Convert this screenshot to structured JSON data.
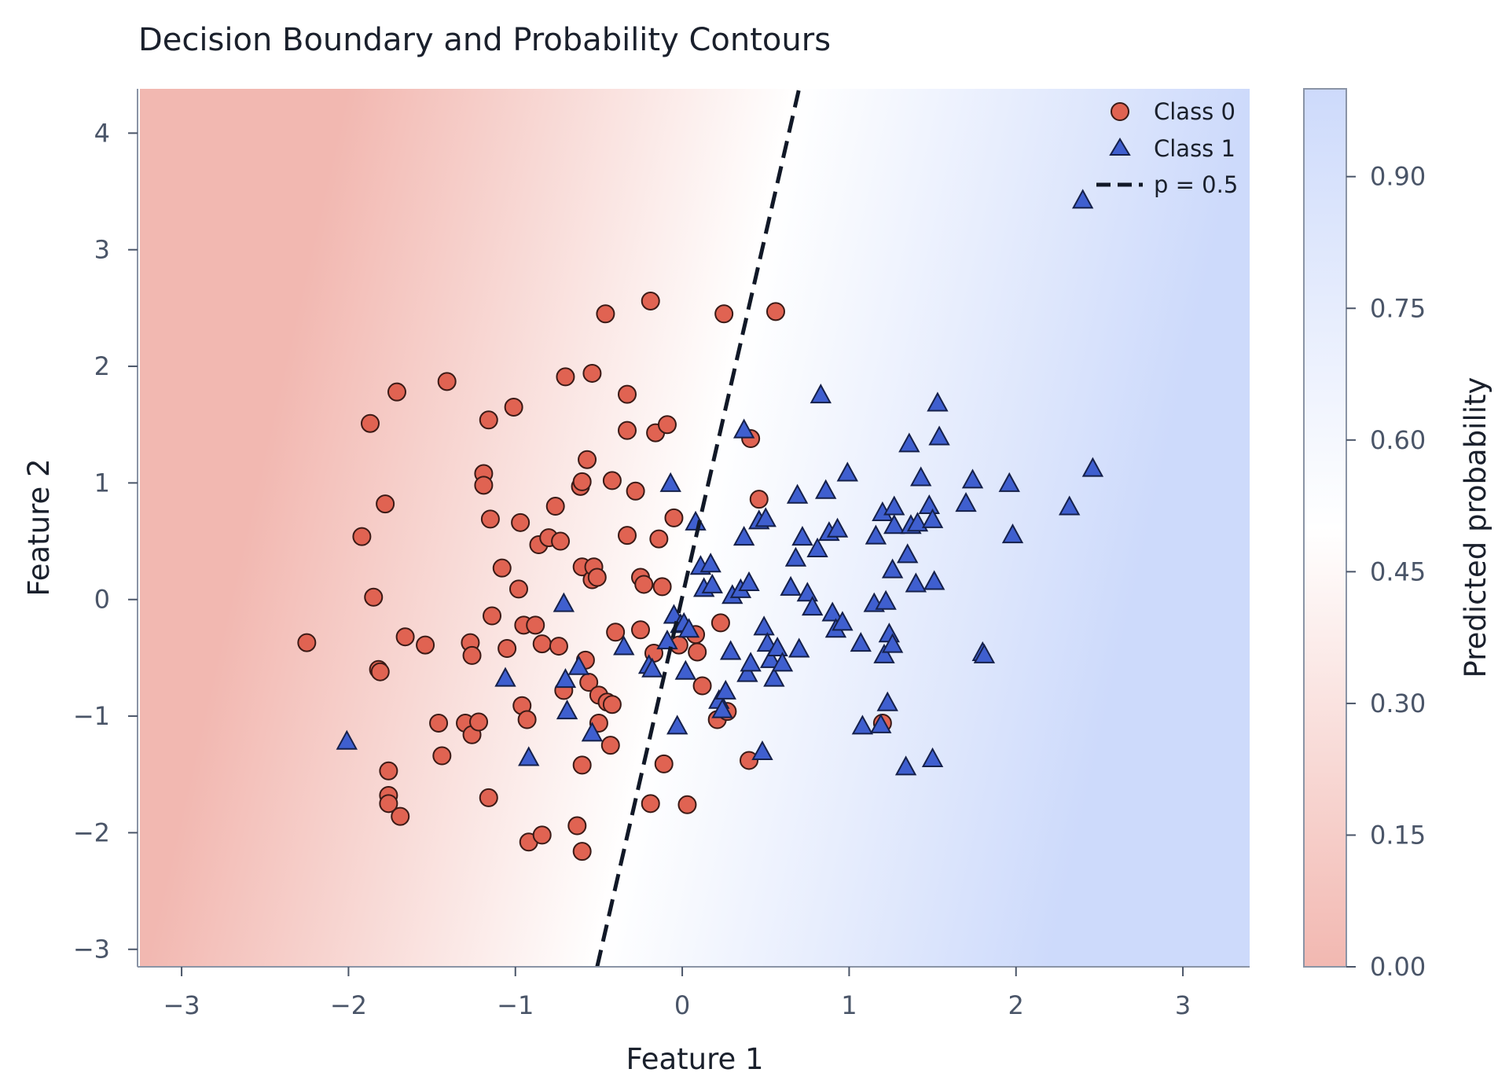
{
  "chart_data": {
    "type": "scatter",
    "title": "Decision Boundary and Probability Contours",
    "xlabel": "Feature 1",
    "ylabel": "Feature 2",
    "xlim": [
      -3.25,
      3.4
    ],
    "ylim": [
      -3.15,
      4.38
    ],
    "xticks": [
      -3,
      -2,
      -1,
      0,
      1,
      2,
      3
    ],
    "xtick_labels": [
      "−3",
      "−2",
      "−1",
      "0",
      "1",
      "2",
      "3"
    ],
    "yticks": [
      -3,
      -2,
      -1,
      0,
      1,
      2,
      3,
      4
    ],
    "ytick_labels": [
      "−3",
      "−2",
      "−1",
      "0",
      "1",
      "2",
      "3",
      "4"
    ],
    "grid": false,
    "legend_position": "top-right",
    "background": "filled probability contours (red = low, blue = high)",
    "decision_boundary": {
      "label": "p = 0.5",
      "style": "dashed",
      "color": "#111827",
      "points": [
        [
          -0.51,
          -3.15
        ],
        [
          0.7,
          4.38
        ]
      ]
    },
    "colorbar": {
      "label": "Predicted probability",
      "range": [
        0.0,
        1.0
      ],
      "ticks": [
        0.0,
        0.15,
        0.3,
        0.45,
        0.6,
        0.75,
        0.9
      ],
      "tick_labels": [
        "0.00",
        "0.15",
        "0.30",
        "0.45",
        "0.60",
        "0.75",
        "0.90"
      ],
      "low_color": "#f2b8b1",
      "mid_color": "#ffffff",
      "high_color": "#cddafb"
    },
    "series": [
      {
        "name": "Class 0",
        "marker": "circle",
        "color": "#e06352",
        "points": [
          [
            -2.25,
            -0.37
          ],
          [
            -1.92,
            0.54
          ],
          [
            -1.87,
            1.51
          ],
          [
            -1.85,
            0.02
          ],
          [
            -1.82,
            -0.6
          ],
          [
            -1.81,
            -0.62
          ],
          [
            -1.78,
            0.82
          ],
          [
            -1.76,
            -1.47
          ],
          [
            -1.76,
            -1.68
          ],
          [
            -1.76,
            -1.75
          ],
          [
            -1.71,
            1.78
          ],
          [
            -1.69,
            -1.86
          ],
          [
            -1.66,
            -0.32
          ],
          [
            -1.54,
            -0.39
          ],
          [
            -1.46,
            -1.06
          ],
          [
            -1.44,
            -1.34
          ],
          [
            -1.41,
            1.87
          ],
          [
            -1.3,
            -1.06
          ],
          [
            -1.27,
            -0.37
          ],
          [
            -1.26,
            -1.16
          ],
          [
            -1.26,
            -0.48
          ],
          [
            -1.22,
            -1.05
          ],
          [
            -1.19,
            1.08
          ],
          [
            -1.19,
            0.98
          ],
          [
            -1.16,
            -1.7
          ],
          [
            -1.16,
            1.54
          ],
          [
            -1.15,
            0.69
          ],
          [
            -1.14,
            -0.14
          ],
          [
            -1.08,
            0.27
          ],
          [
            -1.05,
            -0.42
          ],
          [
            -1.01,
            1.65
          ],
          [
            -0.98,
            0.09
          ],
          [
            -0.97,
            0.66
          ],
          [
            -0.96,
            -0.91
          ],
          [
            -0.95,
            -0.22
          ],
          [
            -0.93,
            -1.03
          ],
          [
            -0.92,
            -2.08
          ],
          [
            -0.88,
            -0.22
          ],
          [
            -0.86,
            0.47
          ],
          [
            -0.84,
            -2.02
          ],
          [
            -0.84,
            -0.38
          ],
          [
            -0.8,
            0.53
          ],
          [
            -0.76,
            0.8
          ],
          [
            -0.74,
            -0.4
          ],
          [
            -0.73,
            0.5
          ],
          [
            -0.71,
            -0.78
          ],
          [
            -0.7,
            1.91
          ],
          [
            -0.63,
            -1.94
          ],
          [
            -0.61,
            0.97
          ],
          [
            -0.6,
            -2.16
          ],
          [
            -0.6,
            -1.42
          ],
          [
            -0.6,
            1.01
          ],
          [
            -0.6,
            0.28
          ],
          [
            -0.58,
            -0.52
          ],
          [
            -0.57,
            1.2
          ],
          [
            -0.56,
            -0.71
          ],
          [
            -0.54,
            1.94
          ],
          [
            -0.54,
            0.17
          ],
          [
            -0.53,
            0.28
          ],
          [
            -0.51,
            0.19
          ],
          [
            -0.5,
            -1.06
          ],
          [
            -0.5,
            -0.82
          ],
          [
            -0.46,
            2.45
          ],
          [
            -0.45,
            -0.88
          ],
          [
            -0.43,
            -1.25
          ],
          [
            -0.42,
            1.02
          ],
          [
            -0.42,
            -0.9
          ],
          [
            -0.4,
            -0.28
          ],
          [
            -0.33,
            1.45
          ],
          [
            -0.33,
            0.55
          ],
          [
            -0.33,
            1.76
          ],
          [
            -0.28,
            0.93
          ],
          [
            -0.25,
            -0.26
          ],
          [
            -0.25,
            0.19
          ],
          [
            -0.23,
            0.13
          ],
          [
            -0.19,
            2.56
          ],
          [
            -0.19,
            -1.75
          ],
          [
            -0.17,
            -0.46
          ],
          [
            -0.16,
            1.43
          ],
          [
            -0.14,
            0.52
          ],
          [
            -0.12,
            0.11
          ],
          [
            -0.11,
            -1.41
          ],
          [
            -0.09,
            1.5
          ],
          [
            -0.05,
            0.7
          ],
          [
            -0.02,
            -0.39
          ],
          [
            0.03,
            -1.76
          ],
          [
            0.08,
            -0.3
          ],
          [
            0.09,
            -0.45
          ],
          [
            0.12,
            -0.74
          ],
          [
            0.21,
            -1.03
          ],
          [
            0.23,
            -0.2
          ],
          [
            0.25,
            2.45
          ],
          [
            0.27,
            -0.96
          ],
          [
            0.4,
            -1.38
          ],
          [
            0.41,
            1.38
          ],
          [
            0.46,
            0.86
          ],
          [
            0.56,
            2.47
          ],
          [
            1.2,
            -1.06
          ]
        ]
      },
      {
        "name": "Class 1",
        "marker": "triangle",
        "color": "#3f5fcf",
        "points": [
          [
            -2.01,
            -1.22
          ],
          [
            -1.06,
            -0.68
          ],
          [
            -0.92,
            -1.36
          ],
          [
            -0.71,
            -0.04
          ],
          [
            -0.7,
            -0.69
          ],
          [
            -0.69,
            -0.96
          ],
          [
            -0.62,
            -0.58
          ],
          [
            -0.54,
            -1.15
          ],
          [
            -0.35,
            -0.41
          ],
          [
            -0.2,
            -0.57
          ],
          [
            -0.18,
            -0.6
          ],
          [
            -0.09,
            -0.36
          ],
          [
            -0.07,
            0.99
          ],
          [
            -0.05,
            -0.14
          ],
          [
            -0.03,
            -1.09
          ],
          [
            -0.01,
            -0.22
          ],
          [
            0.01,
            -0.21
          ],
          [
            0.02,
            -0.62
          ],
          [
            0.04,
            -0.26
          ],
          [
            0.08,
            0.66
          ],
          [
            0.11,
            0.28
          ],
          [
            0.13,
            0.09
          ],
          [
            0.17,
            0.3
          ],
          [
            0.18,
            0.12
          ],
          [
            0.22,
            -0.87
          ],
          [
            0.24,
            -0.95
          ],
          [
            0.26,
            -0.79
          ],
          [
            0.29,
            -0.45
          ],
          [
            0.3,
            0.03
          ],
          [
            0.35,
            0.08
          ],
          [
            0.37,
            0.53
          ],
          [
            0.37,
            1.45
          ],
          [
            0.39,
            -0.64
          ],
          [
            0.4,
            0.14
          ],
          [
            0.41,
            -0.55
          ],
          [
            0.46,
            0.67
          ],
          [
            0.48,
            -1.31
          ],
          [
            0.49,
            -0.24
          ],
          [
            0.5,
            0.69
          ],
          [
            0.51,
            -0.38
          ],
          [
            0.53,
            -0.52
          ],
          [
            0.55,
            -0.68
          ],
          [
            0.57,
            -0.42
          ],
          [
            0.6,
            -0.55
          ],
          [
            0.65,
            0.1
          ],
          [
            0.68,
            0.35
          ],
          [
            0.69,
            0.89
          ],
          [
            0.7,
            -0.43
          ],
          [
            0.72,
            0.53
          ],
          [
            0.75,
            0.05
          ],
          [
            0.78,
            -0.07
          ],
          [
            0.81,
            0.43
          ],
          [
            0.83,
            1.75
          ],
          [
            0.86,
            0.93
          ],
          [
            0.88,
            0.57
          ],
          [
            0.9,
            -0.12
          ],
          [
            0.92,
            -0.26
          ],
          [
            0.93,
            0.6
          ],
          [
            0.96,
            -0.2
          ],
          [
            0.99,
            1.08
          ],
          [
            1.07,
            -0.38
          ],
          [
            1.08,
            -1.09
          ],
          [
            1.15,
            -0.04
          ],
          [
            1.16,
            0.54
          ],
          [
            1.19,
            -1.08
          ],
          [
            1.2,
            0.74
          ],
          [
            1.21,
            -0.48
          ],
          [
            1.22,
            -0.02
          ],
          [
            1.23,
            -0.89
          ],
          [
            1.24,
            -0.3
          ],
          [
            1.26,
            -0.39
          ],
          [
            1.26,
            0.25
          ],
          [
            1.27,
            0.79
          ],
          [
            1.27,
            0.63
          ],
          [
            1.34,
            -1.44
          ],
          [
            1.35,
            0.38
          ],
          [
            1.36,
            1.33
          ],
          [
            1.37,
            0.63
          ],
          [
            1.4,
            0.13
          ],
          [
            1.41,
            0.65
          ],
          [
            1.43,
            1.04
          ],
          [
            1.48,
            0.8
          ],
          [
            1.5,
            0.68
          ],
          [
            1.5,
            -1.37
          ],
          [
            1.51,
            0.15
          ],
          [
            1.53,
            1.68
          ],
          [
            1.54,
            1.39
          ],
          [
            1.7,
            0.82
          ],
          [
            1.74,
            1.02
          ],
          [
            1.8,
            -0.46
          ],
          [
            1.81,
            -0.48
          ],
          [
            1.96,
            0.99
          ],
          [
            1.98,
            0.55
          ],
          [
            2.32,
            0.79
          ],
          [
            2.4,
            3.42
          ],
          [
            2.46,
            1.12
          ]
        ]
      }
    ]
  }
}
